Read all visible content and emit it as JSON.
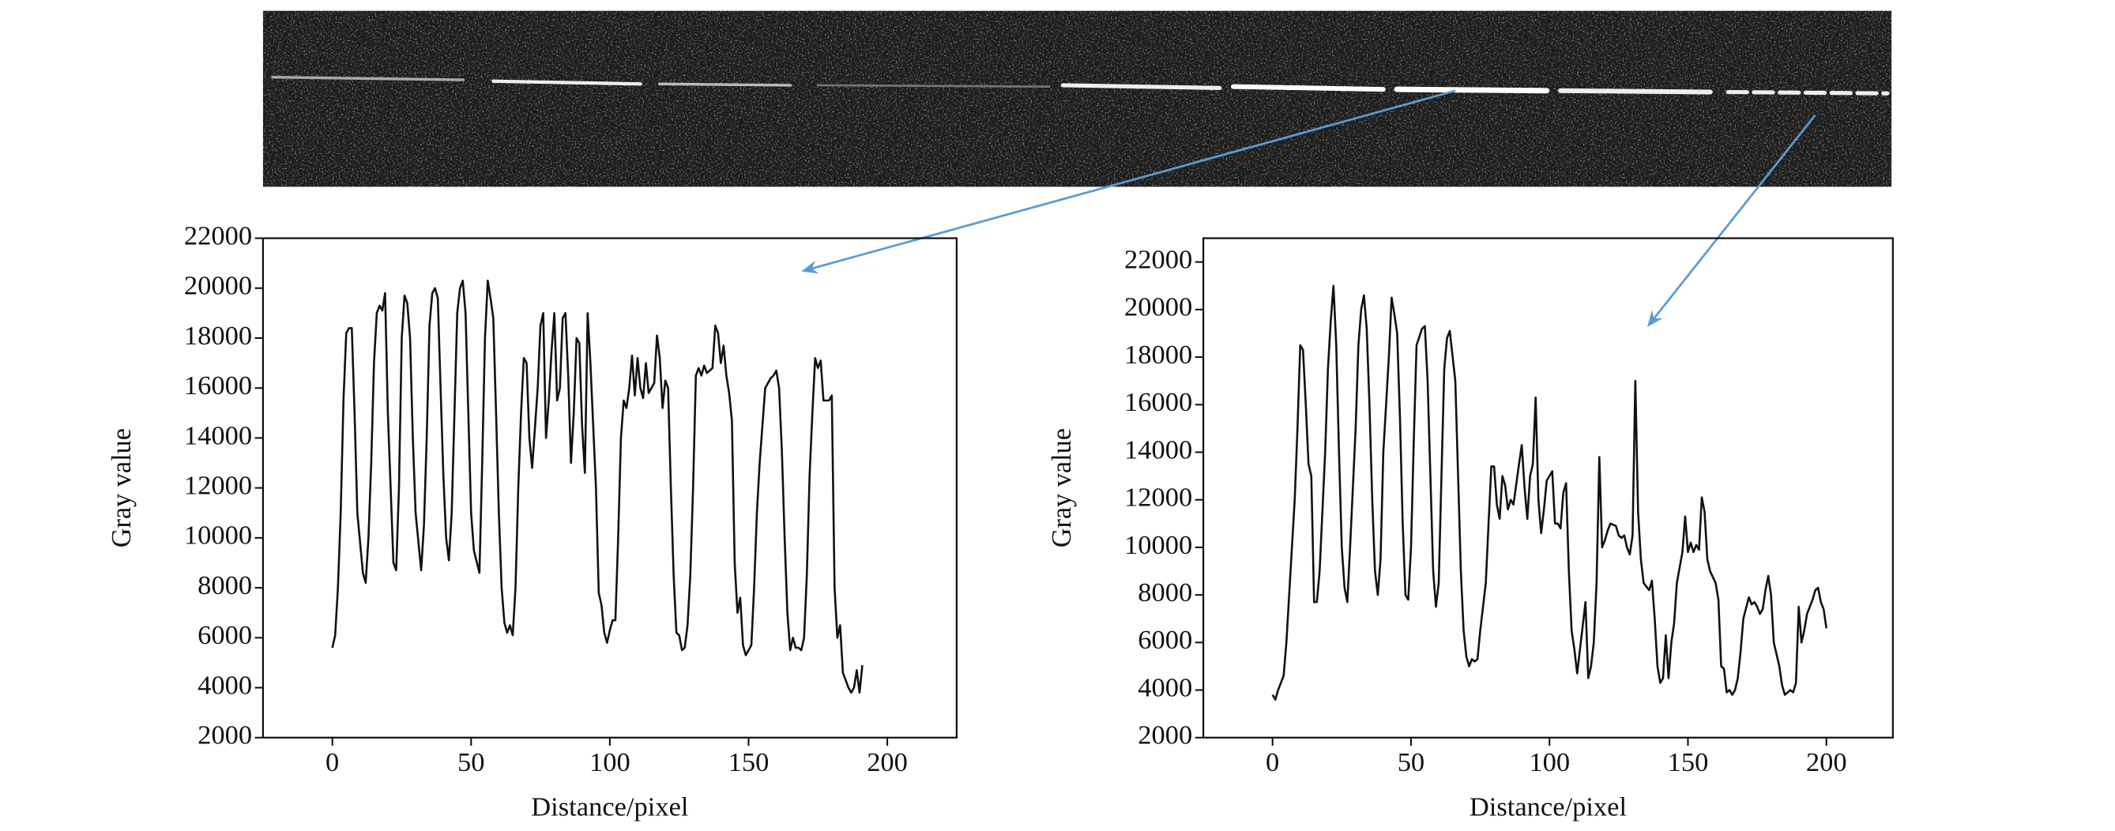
{
  "chart_data": [
    {
      "type": "line",
      "xlabel": "Distance/pixel",
      "ylabel": "Gray value",
      "color": "#111111",
      "xlim": [
        -25,
        225
      ],
      "ylim": [
        2000,
        22000
      ],
      "xticks": [
        0,
        50,
        100,
        150,
        200
      ],
      "yticks": [
        2000,
        4000,
        6000,
        8000,
        10000,
        12000,
        14000,
        16000,
        18000,
        20000,
        22000
      ],
      "x": [
        0,
        1,
        2,
        3,
        4,
        5,
        6,
        7,
        8,
        9,
        11,
        12,
        13,
        14,
        15,
        16,
        17,
        18,
        19,
        20,
        21,
        22,
        23,
        24,
        25,
        26,
        27,
        28,
        29,
        30,
        32,
        33,
        34,
        35,
        36,
        37,
        38,
        39,
        40,
        41,
        42,
        43,
        44,
        45,
        46,
        47,
        48,
        49,
        50,
        51,
        53,
        54,
        55,
        56,
        57,
        58,
        59,
        60,
        61,
        62,
        63,
        64,
        65,
        66,
        67,
        68,
        69,
        70,
        71,
        72,
        74,
        75,
        76,
        77,
        78,
        79,
        80,
        81,
        82,
        83,
        84,
        85,
        86,
        87,
        88,
        89,
        90,
        91,
        92,
        93,
        95,
        96,
        97,
        98,
        99,
        100,
        101,
        102,
        103,
        104,
        105,
        106,
        107,
        108,
        109,
        110,
        111,
        112,
        113,
        114,
        116,
        117,
        118,
        119,
        120,
        121,
        122,
        123,
        124,
        125,
        126,
        127,
        128,
        129,
        130,
        131,
        132,
        133,
        134,
        135,
        137,
        138,
        139,
        140,
        141,
        142,
        143,
        144,
        145,
        146,
        147,
        148,
        149,
        150,
        151,
        152,
        153,
        154,
        155,
        156,
        158,
        159,
        160,
        161,
        162,
        163,
        164,
        165,
        166,
        167,
        168,
        169,
        170,
        171,
        172,
        173,
        174,
        175,
        176,
        177,
        179,
        180,
        181,
        182,
        183,
        184,
        185,
        186,
        187,
        188,
        189,
        190,
        191
      ],
      "values": [
        5600,
        6100,
        8000,
        11000,
        15500,
        18200,
        18400,
        18400,
        15000,
        11000,
        8600,
        8200,
        10000,
        13000,
        17000,
        19000,
        19300,
        19100,
        19800,
        15000,
        12000,
        9000,
        8700,
        12000,
        18000,
        19700,
        19400,
        18000,
        14000,
        11000,
        8700,
        10500,
        14000,
        18500,
        19800,
        20000,
        19600,
        16000,
        12500,
        10000,
        9100,
        11000,
        15000,
        19000,
        20000,
        20300,
        19000,
        15000,
        11000,
        9500,
        8600,
        13000,
        18000,
        20300,
        19600,
        18800,
        15000,
        11000,
        8000,
        6600,
        6200,
        6500,
        6100,
        8000,
        12000,
        15000,
        17200,
        17000,
        14000,
        12800,
        16000,
        18500,
        19000,
        14000,
        15500,
        17500,
        19000,
        15500,
        16000,
        18800,
        19000,
        16500,
        13000,
        15000,
        18000,
        17800,
        14500,
        12600,
        19000,
        17000,
        12000,
        7800,
        7300,
        6200,
        5800,
        6300,
        6700,
        6700,
        10000,
        14000,
        15500,
        15200,
        16000,
        17300,
        15700,
        17200,
        16000,
        15600,
        17000,
        15800,
        16200,
        18100,
        17200,
        15200,
        16300,
        16000,
        12000,
        8500,
        6200,
        6100,
        5500,
        5600,
        6500,
        8500,
        12000,
        16500,
        16800,
        16500,
        16900,
        16600,
        16800,
        18500,
        18200,
        17000,
        17700,
        16500,
        15800,
        14700,
        9000,
        7000,
        7600,
        5700,
        5300,
        5500,
        5700,
        8000,
        11000,
        13000,
        14500,
        16000,
        16400,
        16500,
        16700,
        16000,
        13500,
        10000,
        7000,
        5500,
        6000,
        5600,
        5600,
        5500,
        6000,
        8500,
        12500,
        15000,
        17200,
        16800,
        17100,
        15500,
        15500,
        15700,
        8000,
        6000,
        6500,
        4600,
        4300,
        4000,
        3800,
        4000,
        4700,
        3800,
        4900
      ]
    },
    {
      "type": "line",
      "xlabel": "Distance/pixel",
      "ylabel": "Gray value",
      "color": "#111111",
      "xlim": [
        -25,
        224
      ],
      "ylim": [
        2000,
        23000
      ],
      "xticks": [
        0,
        50,
        100,
        150,
        200
      ],
      "yticks": [
        2000,
        4000,
        6000,
        8000,
        10000,
        12000,
        14000,
        16000,
        18000,
        20000,
        22000
      ],
      "x": [
        0,
        1,
        2,
        3,
        4,
        5,
        7,
        8,
        9,
        10,
        11,
        12,
        13,
        14,
        15,
        16,
        17,
        19,
        20,
        21,
        22,
        23,
        24,
        25,
        26,
        27,
        28,
        30,
        31,
        32,
        33,
        34,
        35,
        36,
        37,
        38,
        39,
        40,
        42,
        43,
        44,
        45,
        46,
        47,
        48,
        49,
        50,
        51,
        52,
        54,
        55,
        56,
        57,
        58,
        59,
        60,
        61,
        62,
        63,
        64,
        66,
        67,
        68,
        69,
        70,
        71,
        72,
        73,
        74,
        75,
        77,
        78,
        79,
        80,
        81,
        82,
        83,
        84,
        85,
        86,
        87,
        89,
        90,
        91,
        92,
        93,
        94,
        95,
        96,
        97,
        98,
        99,
        101,
        102,
        103,
        104,
        105,
        106,
        107,
        108,
        109,
        110,
        111,
        113,
        114,
        115,
        116,
        117,
        118,
        119,
        120,
        121,
        122,
        124,
        125,
        126,
        127,
        128,
        129,
        130,
        131,
        132,
        133,
        134,
        136,
        137,
        138,
        139,
        140,
        141,
        142,
        143,
        144,
        145,
        146,
        148,
        149,
        150,
        151,
        152,
        153,
        154,
        155,
        156,
        157,
        158,
        160,
        161,
        162,
        163,
        164,
        165,
        166,
        167,
        168,
        169,
        170,
        172,
        173,
        174,
        175,
        176,
        177,
        178,
        179,
        180,
        181,
        183,
        184,
        185,
        186,
        187,
        188,
        189,
        190,
        191,
        192,
        193,
        195,
        196,
        197,
        198,
        199,
        200
      ],
      "values": [
        3800,
        3600,
        4000,
        4300,
        4600,
        6000,
        10000,
        12000,
        15000,
        18500,
        18300,
        16000,
        13500,
        13000,
        7700,
        7700,
        9000,
        14000,
        17500,
        19500,
        21000,
        18500,
        14000,
        10000,
        8300,
        7700,
        10000,
        15000,
        18500,
        20000,
        20600,
        19200,
        16000,
        12000,
        9000,
        8000,
        9500,
        14000,
        18000,
        20500,
        19800,
        19000,
        15500,
        11000,
        8000,
        7800,
        10000,
        14500,
        18500,
        19200,
        19300,
        17000,
        13000,
        9000,
        7500,
        8500,
        13000,
        17500,
        18800,
        19100,
        17000,
        13000,
        9000,
        6500,
        5400,
        5000,
        5300,
        5200,
        5300,
        6500,
        8500,
        11000,
        13400,
        13400,
        11800,
        11200,
        13000,
        12600,
        11600,
        12000,
        11800,
        13500,
        14300,
        12500,
        11200,
        13000,
        13500,
        16300,
        12000,
        10600,
        11600,
        12800,
        13200,
        11000,
        11000,
        10800,
        12300,
        12700,
        9000,
        6500,
        5700,
        4700,
        5700,
        7700,
        4500,
        5000,
        6000,
        8500,
        13800,
        10000,
        10300,
        10700,
        11000,
        10900,
        10500,
        10400,
        10500,
        10000,
        9700,
        10500,
        17000,
        11500,
        9500,
        8500,
        8200,
        8600,
        7000,
        5000,
        4300,
        4500,
        6300,
        4500,
        6000,
        6800,
        8500,
        9800,
        11300,
        9800,
        10200,
        9800,
        10100,
        9900,
        12100,
        11500,
        9500,
        9000,
        8500,
        7800,
        5000,
        4900,
        3900,
        4000,
        3800,
        4000,
        4500,
        5600,
        7000,
        7900,
        7600,
        7700,
        7500,
        7200,
        7400,
        8200,
        8800,
        8000,
        6000,
        5000,
        4200,
        3800,
        3900,
        4000,
        3900,
        4300,
        7500,
        6000,
        6500,
        7200,
        7800,
        8200,
        8300,
        7700,
        7400,
        6600
      ]
    }
  ]
}
